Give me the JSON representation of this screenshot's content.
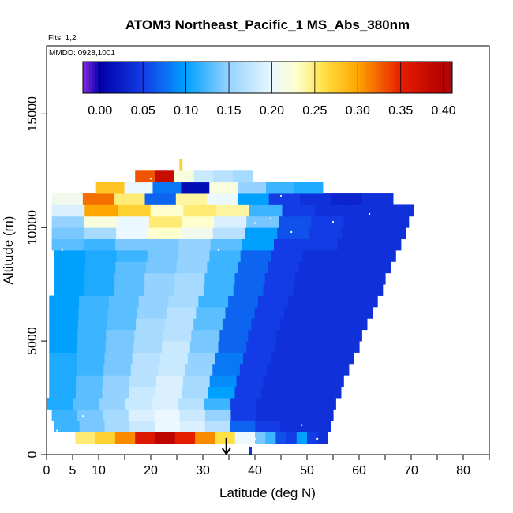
{
  "chart_data": {
    "type": "heatmap",
    "title": "ATOM3 Northeast_Pacific_1 MS_Abs_380nm",
    "annotations": {
      "flights": "Flts: 1,2",
      "dates": "MMDD: 0928,1001"
    },
    "xlabel": "Latitude (deg N)",
    "ylabel": "Altitude (m)",
    "xlim": [
      0,
      85
    ],
    "ylim": [
      0,
      18000
    ],
    "x_ticks": [
      0,
      5,
      10,
      20,
      30,
      40,
      50,
      60,
      70,
      80
    ],
    "y_ticks": [
      0,
      5000,
      10000,
      15000
    ],
    "x_tick_labels": [
      "0",
      "5",
      "10",
      "20",
      "30",
      "40",
      "50",
      "60",
      "70",
      "80"
    ],
    "y_tick_labels": [
      "0",
      "5000",
      "10000",
      "15000"
    ],
    "colorbar": {
      "min": -0.02,
      "max": 0.41,
      "ticks": [
        0.0,
        0.05,
        0.1,
        0.15,
        0.2,
        0.25,
        0.3,
        0.35,
        0.4
      ],
      "tick_labels": [
        "0.00",
        "0.05",
        "0.10",
        "0.15",
        "0.20",
        "0.25",
        "0.30",
        "0.35",
        "0.40"
      ]
    },
    "marker": {
      "type": "arrow-down",
      "x": 34.5,
      "y_top": 700,
      "y_bottom": 0
    },
    "layers": [
      {
        "alt": [
          0,
          350
        ],
        "lat": [
          38.8,
          39.3
        ],
        "values": [
          0.04
        ]
      },
      {
        "alt": [
          500,
          1000
        ],
        "lat": [
          5.5,
          40
        ],
        "values": [
          0.25,
          0.27,
          0.31,
          0.36,
          0.39,
          0.35,
          0.31,
          0.26,
          0.2
        ]
      },
      {
        "alt": [
          500,
          1000
        ],
        "lat": [
          40,
          54
        ],
        "values": [
          0.14,
          0.12,
          0.06,
          0.05,
          0.1,
          0.05,
          0.04
        ]
      },
      {
        "alt": [
          1000,
          1500
        ],
        "lat": [
          1.5,
          54.5
        ],
        "values": [
          0.12,
          0.14,
          0.16,
          0.18,
          0.2,
          0.19,
          0.17,
          0.07,
          0.05,
          0.04,
          0.04
        ]
      },
      {
        "alt": [
          1500,
          2000
        ],
        "lat": [
          1,
          55
        ],
        "values": [
          0.12,
          0.14,
          0.16,
          0.19,
          0.2,
          0.18,
          0.15,
          0.05,
          0.04,
          0.04,
          0.04
        ]
      },
      {
        "alt": [
          2000,
          2500
        ],
        "lat": [
          0,
          55.5
        ],
        "values": [
          0.11,
          0.13,
          0.15,
          0.18,
          0.19,
          0.17,
          0.12,
          0.05,
          0.04,
          0.04,
          0.04
        ]
      },
      {
        "alt": [
          2500,
          3000
        ],
        "lat": [
          0.5,
          56.5
        ],
        "values": [
          0.11,
          0.13,
          0.15,
          0.18,
          0.19,
          0.16,
          0.1,
          0.05,
          0.04,
          0.04,
          0.04
        ]
      },
      {
        "alt": [
          3000,
          3500
        ],
        "lat": [
          0.5,
          57
        ],
        "values": [
          0.11,
          0.13,
          0.15,
          0.17,
          0.19,
          0.16,
          0.09,
          0.05,
          0.04,
          0.04,
          0.04
        ]
      },
      {
        "alt": [
          3500,
          4000
        ],
        "lat": [
          0.5,
          58
        ],
        "values": [
          0.11,
          0.12,
          0.14,
          0.17,
          0.18,
          0.15,
          0.08,
          0.05,
          0.04,
          0.04,
          0.04
        ]
      },
      {
        "alt": [
          4000,
          4500
        ],
        "lat": [
          0.5,
          59
        ],
        "values": [
          0.11,
          0.12,
          0.14,
          0.17,
          0.18,
          0.15,
          0.08,
          0.05,
          0.04,
          0.04,
          0.04
        ]
      },
      {
        "alt": [
          4500,
          5000
        ],
        "lat": [
          0.5,
          60
        ],
        "values": [
          0.1,
          0.12,
          0.14,
          0.16,
          0.18,
          0.14,
          0.07,
          0.05,
          0.04,
          0.04,
          0.04
        ]
      },
      {
        "alt": [
          5000,
          5500
        ],
        "lat": [
          0.5,
          60.5
        ],
        "values": [
          0.1,
          0.12,
          0.14,
          0.16,
          0.17,
          0.14,
          0.07,
          0.05,
          0.04,
          0.04,
          0.04
        ]
      },
      {
        "alt": [
          5500,
          6000
        ],
        "lat": [
          0.5,
          61.5
        ],
        "values": [
          0.1,
          0.12,
          0.13,
          0.16,
          0.17,
          0.13,
          0.07,
          0.05,
          0.04,
          0.04,
          0.04
        ]
      },
      {
        "alt": [
          6000,
          6500
        ],
        "lat": [
          0.5,
          62.5
        ],
        "values": [
          0.1,
          0.12,
          0.13,
          0.15,
          0.17,
          0.13,
          0.07,
          0.05,
          0.04,
          0.04,
          0.04
        ]
      },
      {
        "alt": [
          6500,
          7000
        ],
        "lat": [
          0.5,
          63.5
        ],
        "values": [
          0.1,
          0.12,
          0.13,
          0.15,
          0.16,
          0.12,
          0.07,
          0.05,
          0.04,
          0.04,
          0.04
        ]
      },
      {
        "alt": [
          7000,
          7500
        ],
        "lat": [
          1.5,
          64.5
        ],
        "values": [
          0.1,
          0.11,
          0.13,
          0.15,
          0.16,
          0.12,
          0.07,
          0.05,
          0.04,
          0.04,
          0.04
        ]
      },
      {
        "alt": [
          7500,
          8000
        ],
        "lat": [
          1.5,
          65
        ],
        "values": [
          0.1,
          0.11,
          0.13,
          0.15,
          0.16,
          0.12,
          0.07,
          0.05,
          0.04,
          0.04,
          0.04
        ]
      },
      {
        "alt": [
          8000,
          8500
        ],
        "lat": [
          1.5,
          66
        ],
        "values": [
          0.1,
          0.11,
          0.13,
          0.14,
          0.15,
          0.12,
          0.07,
          0.05,
          0.04,
          0.04,
          0.04
        ]
      },
      {
        "alt": [
          8500,
          9000
        ],
        "lat": [
          1.5,
          67
        ],
        "values": [
          0.1,
          0.11,
          0.12,
          0.14,
          0.15,
          0.12,
          0.07,
          0.05,
          0.04,
          0.04,
          0.04
        ]
      },
      {
        "alt": [
          9000,
          9500
        ],
        "lat": [
          1,
          68
        ],
        "values": [
          0.13,
          0.12,
          0.14,
          0.14,
          0.15,
          0.13,
          0.1,
          0.05,
          0.05,
          0.04,
          0.04
        ]
      },
      {
        "alt": [
          9500,
          10000
        ],
        "lat": [
          1,
          69
        ],
        "values": [
          0.14,
          0.16,
          0.2,
          0.23,
          0.21,
          0.17,
          0.1,
          0.06,
          0.05,
          0.04,
          0.04
        ]
      },
      {
        "alt": [
          10000,
          10500
        ],
        "lat": [
          1,
          69.5
        ],
        "values": [
          0.15,
          0.22,
          0.2,
          0.25,
          0.23,
          0.19,
          0.14,
          0.06,
          0.05,
          0.04,
          0.04
        ]
      },
      {
        "alt": [
          10500,
          11000
        ],
        "lat": [
          1,
          70.5
        ],
        "values": [
          0.19,
          0.3,
          0.27,
          0.23,
          0.25,
          0.24,
          0.12,
          0.05,
          0.04,
          0.04,
          0.04
        ]
      },
      {
        "alt": [
          11000,
          11500
        ],
        "lat": [
          1,
          66.5
        ],
        "values": [
          0.21,
          0.32,
          0.25,
          0.07,
          0.24,
          0.2,
          0.1,
          0.05,
          0.04,
          0.03,
          0.04
        ]
      },
      {
        "alt": [
          11500,
          12000
        ],
        "lat": [
          9.5,
          53
        ],
        "values": [
          0.28,
          0.2,
          0.08,
          0.01,
          0.22,
          0.15,
          0.12,
          0.11
        ]
      },
      {
        "alt": [
          12000,
          12500
        ],
        "lat": [
          17,
          39.5
        ],
        "values": [
          0.33,
          0.38,
          0.22,
          0.18,
          0.17,
          0.16
        ]
      },
      {
        "alt": [
          12500,
          13000
        ],
        "lat": [
          25.5,
          26
        ],
        "values": [
          0.27
        ]
      }
    ],
    "white_markers": [
      [
        3,
        9000
      ],
      [
        2,
        1050
      ],
      [
        7,
        1700
      ],
      [
        24,
        1450
      ],
      [
        49,
        1300
      ],
      [
        36,
        11000
      ],
      [
        45,
        11400
      ],
      [
        40,
        10200
      ],
      [
        47,
        9800
      ],
      [
        33,
        9000
      ],
      [
        16,
        11200
      ],
      [
        20,
        12150
      ],
      [
        62,
        10600
      ],
      [
        55,
        10250
      ],
      [
        52,
        700
      ],
      [
        40,
        700
      ],
      [
        43,
        10400
      ]
    ]
  }
}
